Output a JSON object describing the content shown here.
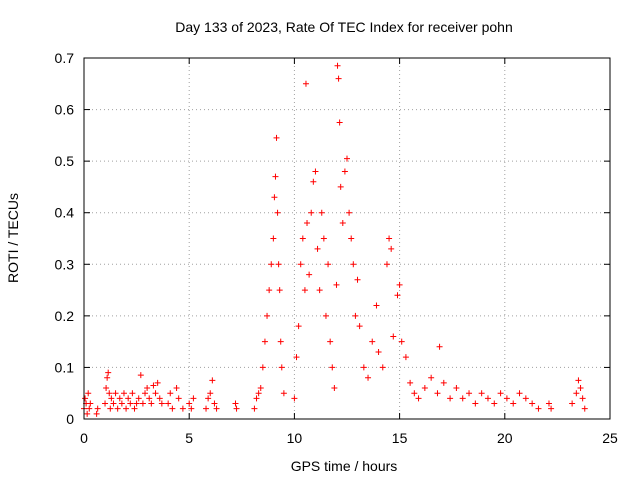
{
  "chart_data": {
    "type": "scatter",
    "title": "Day 133 of 2023, Rate Of TEC Index for receiver pohn",
    "xlabel": "GPS time / hours",
    "ylabel": "ROTI / TECUs",
    "xlim": [
      0,
      25
    ],
    "ylim": [
      0,
      0.7
    ],
    "xticks": [
      "0",
      "5",
      "10",
      "15",
      "20",
      "25"
    ],
    "yticks": [
      "0",
      "0.1",
      "0.2",
      "0.3",
      "0.4",
      "0.5",
      "0.6",
      "0.7"
    ],
    "grid": true,
    "marker": "+",
    "color": "#ff0000",
    "series": [
      {
        "name": "ROTI",
        "points": [
          [
            0.0,
            0.02
          ],
          [
            0.05,
            0.04
          ],
          [
            0.1,
            0.03
          ],
          [
            0.15,
            0.01
          ],
          [
            0.2,
            0.05
          ],
          [
            0.25,
            0.02
          ],
          [
            0.3,
            0.03
          ],
          [
            0.6,
            0.01
          ],
          [
            0.65,
            0.02
          ],
          [
            1.0,
            0.03
          ],
          [
            1.05,
            0.06
          ],
          [
            1.1,
            0.08
          ],
          [
            1.15,
            0.09
          ],
          [
            1.2,
            0.05
          ],
          [
            1.25,
            0.02
          ],
          [
            1.3,
            0.04
          ],
          [
            1.4,
            0.03
          ],
          [
            1.5,
            0.05
          ],
          [
            1.6,
            0.02
          ],
          [
            1.7,
            0.04
          ],
          [
            1.8,
            0.03
          ],
          [
            1.9,
            0.05
          ],
          [
            2.0,
            0.02
          ],
          [
            2.1,
            0.04
          ],
          [
            2.2,
            0.03
          ],
          [
            2.3,
            0.05
          ],
          [
            2.4,
            0.02
          ],
          [
            2.5,
            0.03
          ],
          [
            2.6,
            0.04
          ],
          [
            2.7,
            0.085
          ],
          [
            2.8,
            0.03
          ],
          [
            2.9,
            0.05
          ],
          [
            3.0,
            0.06
          ],
          [
            3.1,
            0.04
          ],
          [
            3.2,
            0.03
          ],
          [
            3.3,
            0.065
          ],
          [
            3.4,
            0.05
          ],
          [
            3.5,
            0.07
          ],
          [
            3.6,
            0.04
          ],
          [
            3.7,
            0.03
          ],
          [
            4.0,
            0.03
          ],
          [
            4.1,
            0.05
          ],
          [
            4.2,
            0.02
          ],
          [
            4.4,
            0.06
          ],
          [
            4.5,
            0.04
          ],
          [
            4.7,
            0.02
          ],
          [
            5.0,
            0.03
          ],
          [
            5.1,
            0.02
          ],
          [
            5.2,
            0.04
          ],
          [
            5.8,
            0.02
          ],
          [
            5.9,
            0.04
          ],
          [
            6.0,
            0.05
          ],
          [
            6.1,
            0.075
          ],
          [
            6.2,
            0.03
          ],
          [
            6.3,
            0.02
          ],
          [
            7.2,
            0.03
          ],
          [
            7.25,
            0.02
          ],
          [
            8.1,
            0.02
          ],
          [
            8.2,
            0.04
          ],
          [
            8.3,
            0.05
          ],
          [
            8.4,
            0.06
          ],
          [
            8.5,
            0.1
          ],
          [
            8.6,
            0.15
          ],
          [
            8.7,
            0.2
          ],
          [
            8.8,
            0.25
          ],
          [
            8.9,
            0.3
          ],
          [
            9.0,
            0.35
          ],
          [
            9.05,
            0.43
          ],
          [
            9.1,
            0.47
          ],
          [
            9.15,
            0.545
          ],
          [
            9.2,
            0.4
          ],
          [
            9.25,
            0.3
          ],
          [
            9.3,
            0.25
          ],
          [
            9.35,
            0.15
          ],
          [
            9.4,
            0.1
          ],
          [
            9.5,
            0.05
          ],
          [
            10.0,
            0.04
          ],
          [
            10.1,
            0.12
          ],
          [
            10.2,
            0.18
          ],
          [
            10.3,
            0.3
          ],
          [
            10.4,
            0.35
          ],
          [
            10.5,
            0.25
          ],
          [
            10.55,
            0.65
          ],
          [
            10.6,
            0.38
          ],
          [
            10.7,
            0.28
          ],
          [
            10.8,
            0.4
          ],
          [
            10.9,
            0.46
          ],
          [
            11.0,
            0.48
          ],
          [
            11.1,
            0.33
          ],
          [
            11.2,
            0.25
          ],
          [
            11.3,
            0.4
          ],
          [
            11.4,
            0.35
          ],
          [
            11.5,
            0.2
          ],
          [
            11.6,
            0.3
          ],
          [
            11.7,
            0.15
          ],
          [
            11.8,
            0.1
          ],
          [
            11.9,
            0.06
          ],
          [
            12.0,
            0.26
          ],
          [
            12.05,
            0.685
          ],
          [
            12.1,
            0.66
          ],
          [
            12.15,
            0.575
          ],
          [
            12.2,
            0.45
          ],
          [
            12.3,
            0.38
          ],
          [
            12.4,
            0.48
          ],
          [
            12.5,
            0.505
          ],
          [
            12.6,
            0.4
          ],
          [
            12.7,
            0.35
          ],
          [
            12.8,
            0.3
          ],
          [
            12.9,
            0.2
          ],
          [
            13.0,
            0.27
          ],
          [
            13.1,
            0.18
          ],
          [
            13.3,
            0.1
          ],
          [
            13.5,
            0.08
          ],
          [
            13.7,
            0.15
          ],
          [
            13.9,
            0.22
          ],
          [
            14.0,
            0.13
          ],
          [
            14.2,
            0.1
          ],
          [
            14.4,
            0.3
          ],
          [
            14.5,
            0.35
          ],
          [
            14.6,
            0.33
          ],
          [
            14.7,
            0.16
          ],
          [
            14.9,
            0.24
          ],
          [
            15.0,
            0.26
          ],
          [
            15.1,
            0.15
          ],
          [
            15.3,
            0.12
          ],
          [
            15.5,
            0.07
          ],
          [
            15.7,
            0.05
          ],
          [
            15.9,
            0.04
          ],
          [
            16.2,
            0.06
          ],
          [
            16.5,
            0.08
          ],
          [
            16.8,
            0.05
          ],
          [
            16.9,
            0.14
          ],
          [
            17.1,
            0.07
          ],
          [
            17.4,
            0.04
          ],
          [
            17.7,
            0.06
          ],
          [
            18.0,
            0.04
          ],
          [
            18.3,
            0.05
          ],
          [
            18.6,
            0.03
          ],
          [
            18.9,
            0.05
          ],
          [
            19.2,
            0.04
          ],
          [
            19.5,
            0.03
          ],
          [
            19.8,
            0.05
          ],
          [
            20.1,
            0.04
          ],
          [
            20.4,
            0.03
          ],
          [
            20.7,
            0.05
          ],
          [
            21.0,
            0.04
          ],
          [
            21.3,
            0.03
          ],
          [
            21.6,
            0.02
          ],
          [
            22.1,
            0.03
          ],
          [
            22.2,
            0.02
          ],
          [
            23.2,
            0.03
          ],
          [
            23.4,
            0.05
          ],
          [
            23.5,
            0.075
          ],
          [
            23.6,
            0.06
          ],
          [
            23.7,
            0.04
          ],
          [
            23.8,
            0.02
          ]
        ]
      }
    ]
  }
}
